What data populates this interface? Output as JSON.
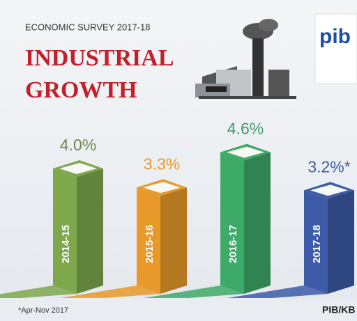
{
  "chart_data": {
    "type": "bar",
    "subtitle": "ECONOMIC SURVEY 2017-18",
    "title": [
      "INDUSTRIAL",
      "GROWTH"
    ],
    "logo": "pib",
    "categories": [
      "2014-15",
      "2015-16",
      "2016-17",
      "2017-18"
    ],
    "values": [
      4.0,
      3.3,
      4.6,
      3.2
    ],
    "value_labels": [
      "4.0%",
      "3.3%",
      "4.6%",
      "3.2%*"
    ],
    "colors": [
      "#7ea84c",
      "#e8992a",
      "#3eaa68",
      "#3d5ba6"
    ],
    "label_colors": [
      "#6d8a4c",
      "#e8992a",
      "#3e9a68",
      "#3d5ba6"
    ],
    "footnote": "*Apr-Nov 2017",
    "source": "PIB/KB"
  }
}
